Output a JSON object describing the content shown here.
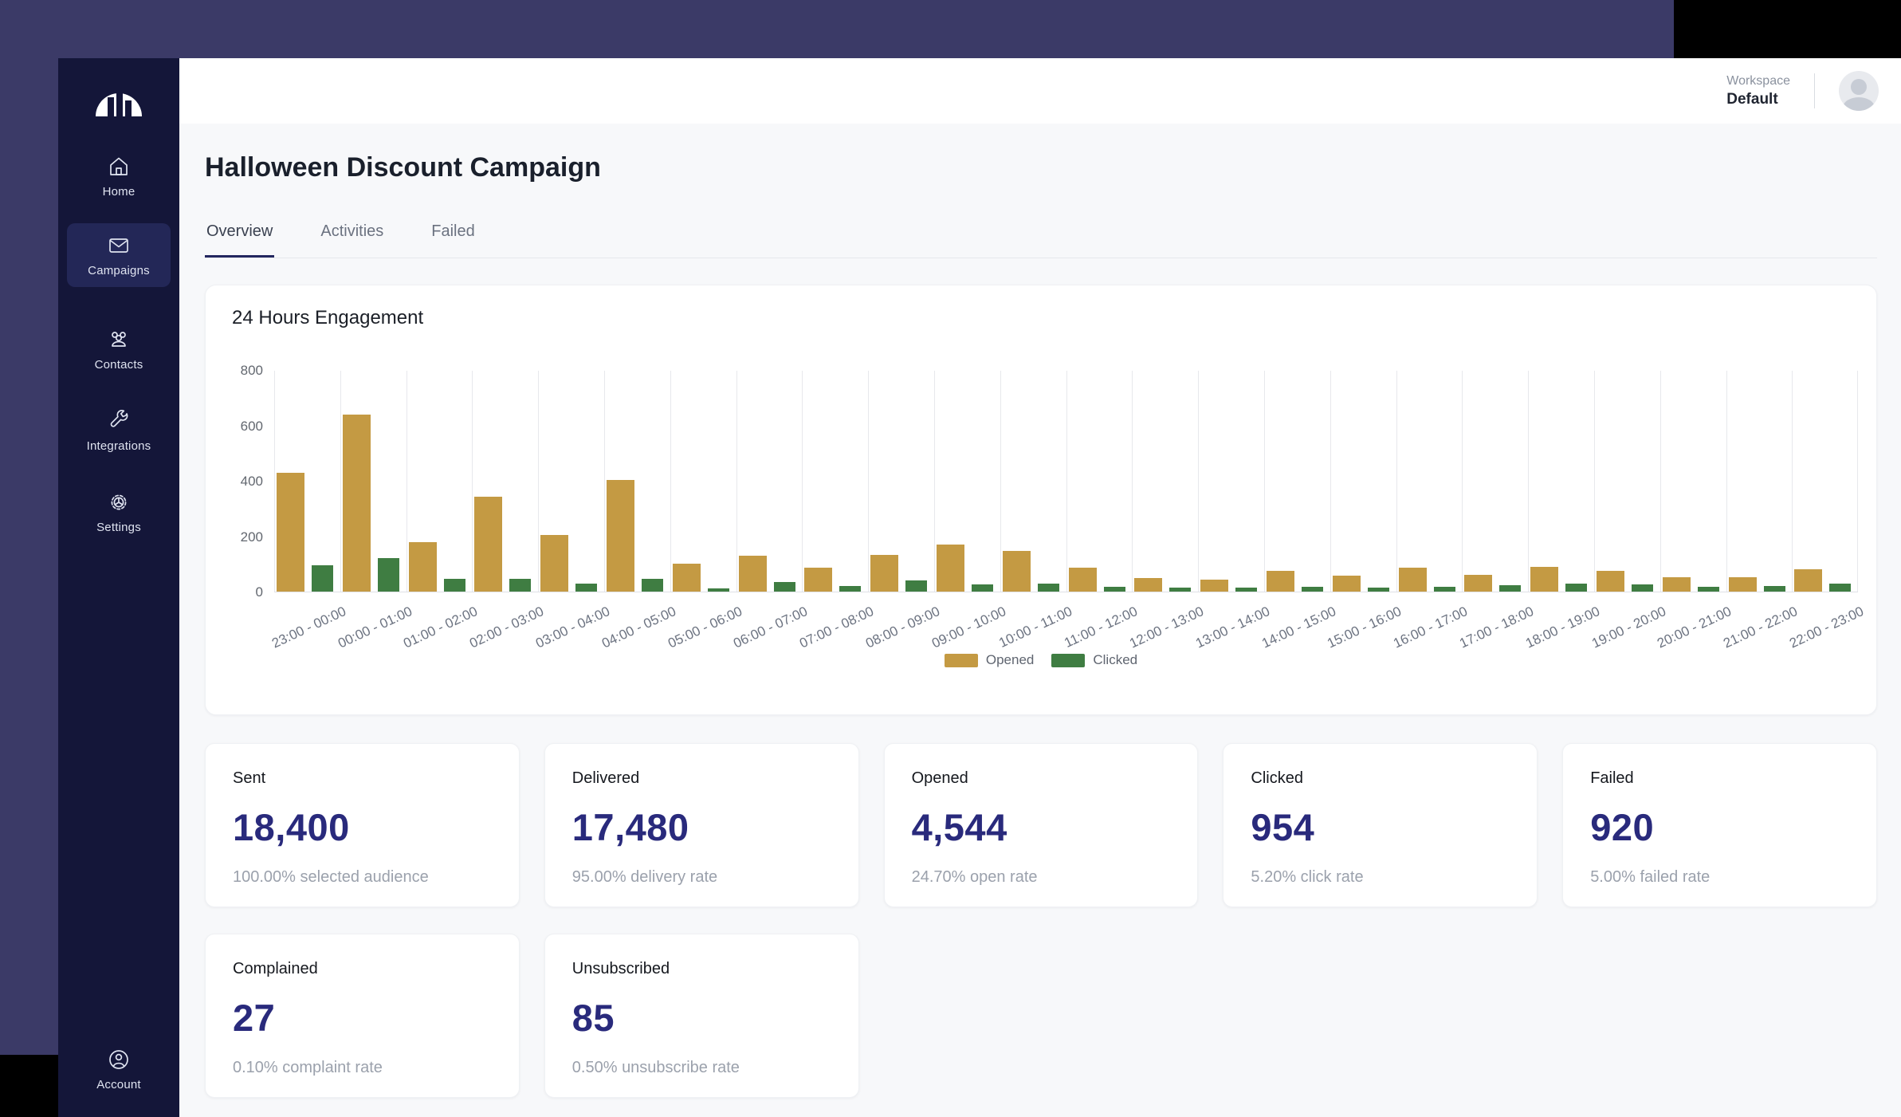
{
  "sidebar": {
    "items": [
      {
        "label": "Home",
        "icon": "home-icon",
        "active": false
      },
      {
        "label": "Campaigns",
        "icon": "mail-icon",
        "active": true
      },
      {
        "label": "Contacts",
        "icon": "users-icon",
        "active": false
      },
      {
        "label": "Integrations",
        "icon": "wrench-icon",
        "active": false
      },
      {
        "label": "Settings",
        "icon": "gear-icon",
        "active": false
      }
    ],
    "bottom_item": {
      "label": "Account",
      "icon": "user-circle-icon"
    }
  },
  "header": {
    "workspace_label": "Workspace",
    "workspace_value": "Default"
  },
  "page": {
    "title": "Halloween Discount Campaign",
    "tabs": [
      {
        "label": "Overview",
        "active": true
      },
      {
        "label": "Activities",
        "active": false
      },
      {
        "label": "Failed",
        "active": false
      }
    ]
  },
  "chart_card": {
    "title": "24 Hours Engagement"
  },
  "chart_data": {
    "type": "bar",
    "title": "24 Hours Engagement",
    "categories": [
      "23:00 - 00:00",
      "00:00 - 01:00",
      "01:00 - 02:00",
      "02:00 - 03:00",
      "03:00 - 04:00",
      "04:00 - 05:00",
      "05:00 - 06:00",
      "06:00 - 07:00",
      "07:00 - 08:00",
      "08:00 - 09:00",
      "09:00 - 10:00",
      "10:00 - 11:00",
      "11:00 - 12:00",
      "12:00 - 13:00",
      "13:00 - 14:00",
      "14:00 - 15:00",
      "15:00 - 16:00",
      "16:00 - 17:00",
      "17:00 - 18:00",
      "18:00 - 19:00",
      "19:00 - 20:00",
      "20:00 - 21:00",
      "21:00 - 22:00",
      "22:00 - 23:00"
    ],
    "series": [
      {
        "name": "Opened",
        "color": "#C49A43",
        "values": [
          430,
          640,
          180,
          345,
          205,
          405,
          100,
          130,
          88,
          132,
          170,
          148,
          88,
          48,
          43,
          74,
          58,
          86,
          62,
          89,
          76,
          53,
          52,
          81
        ]
      },
      {
        "name": "Clicked",
        "color": "#3F7D42",
        "values": [
          95,
          120,
          45,
          45,
          30,
          45,
          12,
          35,
          20,
          40,
          25,
          30,
          18,
          14,
          15,
          16,
          15,
          16,
          22,
          28,
          25,
          18,
          20,
          28
        ]
      }
    ],
    "xlabel": "",
    "ylabel": "",
    "ylim": [
      0,
      800
    ],
    "yticks": [
      0,
      200,
      400,
      600,
      800
    ],
    "grid": "vertical-only",
    "legend_position": "bottom"
  },
  "stats": {
    "cards": [
      {
        "title": "Sent",
        "value": "18,400",
        "sub": "100.00% selected audience"
      },
      {
        "title": "Delivered",
        "value": "17,480",
        "sub": "95.00% delivery rate"
      },
      {
        "title": "Opened",
        "value": "4,544",
        "sub": "24.70% open rate"
      },
      {
        "title": "Clicked",
        "value": "954",
        "sub": "5.20% click rate"
      },
      {
        "title": "Failed",
        "value": "920",
        "sub": "5.00% failed rate"
      },
      {
        "title": "Complained",
        "value": "27",
        "sub": "0.10% complaint rate"
      },
      {
        "title": "Unsubscribed",
        "value": "85",
        "sub": "0.50% unsubscribe rate"
      }
    ]
  },
  "colors": {
    "opened_bar": "#C49A43",
    "clicked_bar": "#3F7D42",
    "sidebar_bg": "#141639",
    "sidebar_active_bg": "#232757",
    "stat_value": "#292A7C",
    "desktop_bg": "#3B3A67"
  }
}
